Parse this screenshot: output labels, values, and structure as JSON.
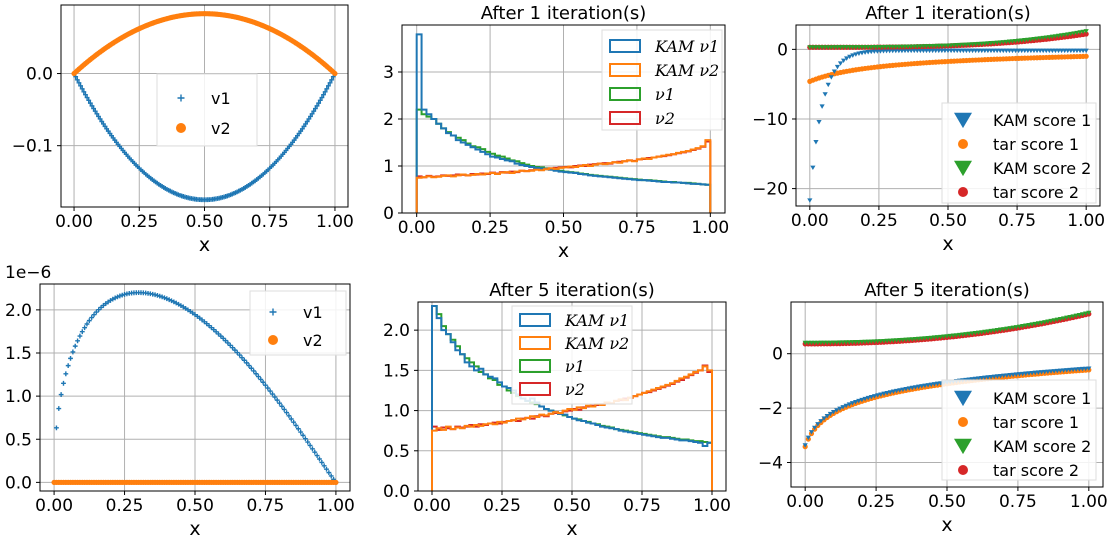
{
  "chart_data": [
    {
      "id": "p1",
      "type": "scatter",
      "title": "",
      "xlabel": "x",
      "ylabel": "",
      "xlim": [
        -0.05,
        1.05
      ],
      "ylim": [
        -0.185,
        0.095
      ],
      "xticks": [
        "0.00",
        "0.25",
        "0.50",
        "0.75",
        "1.00"
      ],
      "xtick_values": [
        0,
        0.25,
        0.5,
        0.75,
        1.0
      ],
      "yticks": [
        "−0.1",
        "0.0"
      ],
      "ytick_values": [
        -0.1,
        0.0
      ],
      "grid": true,
      "legend_position": "center",
      "series": [
        {
          "name": "v1",
          "marker": "plus",
          "color": "#1f77b4",
          "formula": "-0.175*4x(1-x)",
          "x_range": [
            0,
            1
          ],
          "n": 160
        },
        {
          "name": "v2",
          "marker": "dot",
          "color": "#ff7f0e",
          "formula": "0.083*4x(1-x)",
          "x_range": [
            0,
            1
          ],
          "n": 160
        }
      ]
    },
    {
      "id": "p2",
      "type": "histogram",
      "title": "After 1 iteration(s)",
      "xlabel": "x",
      "ylabel": "",
      "xlim": [
        -0.05,
        1.05
      ],
      "ylim": [
        0,
        4.0
      ],
      "xticks": [
        "0.00",
        "0.25",
        "0.50",
        "0.75",
        "1.00"
      ],
      "xtick_values": [
        0,
        0.25,
        0.5,
        0.75,
        1.0
      ],
      "yticks": [
        "0",
        "1",
        "2",
        "3"
      ],
      "ytick_values": [
        0,
        1,
        2,
        3
      ],
      "grid": true,
      "legend_position": "top-right",
      "bins": 60,
      "series": [
        {
          "name": "KAM ν1",
          "italic": true,
          "color": "#1f77b4",
          "values": [
            3.8,
            2.2,
            2.1,
            2.0,
            1.9,
            1.8,
            1.7,
            1.65,
            1.55,
            1.5,
            1.45,
            1.4,
            1.35,
            1.3,
            1.25,
            1.2,
            1.18,
            1.15,
            1.12,
            1.1,
            1.05,
            1.02,
            1.0,
            0.98,
            0.96,
            0.95,
            0.93,
            0.92,
            0.9,
            0.88,
            0.87,
            0.86,
            0.85,
            0.83,
            0.82,
            0.8,
            0.79,
            0.78,
            0.77,
            0.76,
            0.75,
            0.74,
            0.73,
            0.72,
            0.71,
            0.7,
            0.7,
            0.69,
            0.68,
            0.67,
            0.66,
            0.66,
            0.65,
            0.65,
            0.64,
            0.63,
            0.62,
            0.62,
            0.61,
            0.6
          ]
        },
        {
          "name": "KAM ν2",
          "italic": true,
          "color": "#ff7f0e",
          "values": [
            0.75,
            0.76,
            0.78,
            0.76,
            0.77,
            0.79,
            0.8,
            0.78,
            0.8,
            0.82,
            0.8,
            0.81,
            0.83,
            0.82,
            0.84,
            0.85,
            0.83,
            0.86,
            0.87,
            0.85,
            0.88,
            0.9,
            0.89,
            0.9,
            0.92,
            0.91,
            0.93,
            0.95,
            0.94,
            0.96,
            0.97,
            0.99,
            0.98,
            1.0,
            1.02,
            1.0,
            1.03,
            1.05,
            1.04,
            1.06,
            1.08,
            1.07,
            1.1,
            1.12,
            1.1,
            1.14,
            1.16,
            1.15,
            1.18,
            1.2,
            1.22,
            1.24,
            1.25,
            1.28,
            1.3,
            1.32,
            1.35,
            1.38,
            1.42,
            1.55
          ]
        },
        {
          "name": "ν1",
          "italic": true,
          "color": "#2ca02c",
          "values": [
            2.2,
            2.1,
            2.05,
            2.0,
            1.9,
            1.8,
            1.72,
            1.65,
            1.6,
            1.55,
            1.48,
            1.42,
            1.4,
            1.36,
            1.3,
            1.26,
            1.22,
            1.2,
            1.16,
            1.12,
            1.1,
            1.06,
            1.03,
            1.0,
            0.98,
            0.97,
            0.95,
            0.93,
            0.91,
            0.9,
            0.88,
            0.87,
            0.86,
            0.84,
            0.83,
            0.81,
            0.8,
            0.79,
            0.78,
            0.77,
            0.76,
            0.75,
            0.74,
            0.73,
            0.72,
            0.71,
            0.7,
            0.7,
            0.69,
            0.68,
            0.67,
            0.66,
            0.66,
            0.65,
            0.64,
            0.64,
            0.63,
            0.62,
            0.61,
            0.6
          ]
        },
        {
          "name": "ν2",
          "italic": true,
          "color": "#d62728",
          "values": [
            0.78,
            0.76,
            0.79,
            0.77,
            0.78,
            0.8,
            0.79,
            0.8,
            0.82,
            0.81,
            0.8,
            0.83,
            0.82,
            0.84,
            0.83,
            0.86,
            0.84,
            0.87,
            0.86,
            0.88,
            0.87,
            0.9,
            0.89,
            0.91,
            0.93,
            0.92,
            0.94,
            0.95,
            0.96,
            0.97,
            0.98,
            0.97,
            1.0,
            1.01,
            1.0,
            1.03,
            1.04,
            1.05,
            1.06,
            1.05,
            1.08,
            1.09,
            1.1,
            1.12,
            1.11,
            1.14,
            1.15,
            1.17,
            1.18,
            1.2,
            1.21,
            1.23,
            1.25,
            1.27,
            1.29,
            1.31,
            1.34,
            1.37,
            1.41,
            1.52
          ]
        }
      ]
    },
    {
      "id": "p3",
      "type": "scatter",
      "title": "After 1 iteration(s)",
      "xlabel": "x",
      "ylabel": "",
      "xlim": [
        -0.05,
        1.05
      ],
      "ylim": [
        -22.5,
        3.5
      ],
      "xticks": [
        "0.00",
        "0.25",
        "0.50",
        "0.75",
        "1.00"
      ],
      "xtick_values": [
        0,
        0.25,
        0.5,
        0.75,
        1.0
      ],
      "yticks": [
        "−20",
        "−10",
        "0"
      ],
      "ytick_values": [
        -20,
        -10,
        0
      ],
      "grid": true,
      "legend_position": "lower-right",
      "series": [
        {
          "name": "KAM score 1",
          "marker": "triangle",
          "color": "#1f77b4"
        },
        {
          "name": "tar score 1",
          "marker": "dot",
          "color": "#ff7f0e"
        },
        {
          "name": "KAM score 2",
          "marker": "triangle",
          "color": "#2ca02c"
        },
        {
          "name": "tar score 2",
          "marker": "dot",
          "color": "#d62728"
        }
      ]
    },
    {
      "id": "p4",
      "type": "scatter",
      "title": "",
      "xlabel": "x",
      "ylabel": "",
      "y_multiplier": "1e−6",
      "xlim": [
        -0.05,
        1.05
      ],
      "ylim": [
        -0.1,
        2.3
      ],
      "xticks": [
        "0.00",
        "0.25",
        "0.50",
        "0.75",
        "1.00"
      ],
      "xtick_values": [
        0,
        0.25,
        0.5,
        0.75,
        1.0
      ],
      "yticks": [
        "0.0",
        "0.5",
        "1.0",
        "1.5",
        "2.0"
      ],
      "ytick_values": [
        0,
        0.5,
        1.0,
        1.5,
        2.0
      ],
      "grid": true,
      "legend_position": "top-right",
      "series": [
        {
          "name": "v1",
          "marker": "plus",
          "color": "#1f77b4",
          "peak": 2.2,
          "peak_x": 0.3
        },
        {
          "name": "v2",
          "marker": "dot",
          "color": "#ff7f0e",
          "value": 0.0
        }
      ]
    },
    {
      "id": "p5",
      "type": "histogram",
      "title": "After 5 iteration(s)",
      "xlabel": "x",
      "ylabel": "",
      "xlim": [
        -0.05,
        1.05
      ],
      "ylim": [
        0,
        2.35
      ],
      "xticks": [
        "0.00",
        "0.25",
        "0.50",
        "0.75",
        "1.00"
      ],
      "xtick_values": [
        0,
        0.25,
        0.5,
        0.75,
        1.0
      ],
      "yticks": [
        "0.0",
        "0.5",
        "1.0",
        "1.5",
        "2.0"
      ],
      "ytick_values": [
        0,
        0.5,
        1.0,
        1.5,
        2.0
      ],
      "grid": true,
      "legend_position": "top-center",
      "bins": 60,
      "series": [
        {
          "name": "KAM ν1",
          "italic": true,
          "color": "#1f77b4",
          "values": [
            2.3,
            2.15,
            2.0,
            1.95,
            1.85,
            1.75,
            1.7,
            1.6,
            1.55,
            1.5,
            1.52,
            1.45,
            1.42,
            1.4,
            1.35,
            1.3,
            1.28,
            1.25,
            1.2,
            1.15,
            1.12,
            1.15,
            1.1,
            1.05,
            1.02,
            1.0,
            0.98,
            0.96,
            0.95,
            0.92,
            0.9,
            0.88,
            0.87,
            0.85,
            0.84,
            0.82,
            0.8,
            0.79,
            0.78,
            0.77,
            0.75,
            0.74,
            0.73,
            0.72,
            0.71,
            0.7,
            0.69,
            0.68,
            0.67,
            0.66,
            0.66,
            0.65,
            0.64,
            0.63,
            0.63,
            0.62,
            0.61,
            0.6,
            0.56,
            0.6
          ]
        },
        {
          "name": "KAM ν2",
          "italic": true,
          "color": "#ff7f0e",
          "values": [
            0.75,
            0.78,
            0.76,
            0.8,
            0.77,
            0.79,
            0.78,
            0.81,
            0.8,
            0.82,
            0.81,
            0.83,
            0.84,
            0.83,
            0.86,
            0.85,
            0.87,
            0.88,
            0.9,
            0.89,
            0.91,
            0.93,
            0.92,
            0.95,
            0.94,
            0.96,
            0.98,
            0.97,
            1.0,
            1.02,
            1.01,
            1.04,
            1.03,
            1.06,
            1.05,
            1.08,
            1.07,
            1.1,
            1.09,
            1.12,
            1.14,
            1.13,
            1.16,
            1.18,
            1.2,
            1.22,
            1.24,
            1.26,
            1.28,
            1.3,
            1.32,
            1.34,
            1.37,
            1.4,
            1.42,
            1.45,
            1.48,
            1.5,
            1.55,
            1.5
          ]
        },
        {
          "name": "ν1",
          "italic": true,
          "color": "#2ca02c",
          "values": [
            2.3,
            2.2,
            2.05,
            1.95,
            1.88,
            1.8,
            1.7,
            1.65,
            1.6,
            1.55,
            1.48,
            1.45,
            1.4,
            1.38,
            1.32,
            1.3,
            1.25,
            1.22,
            1.18,
            1.15,
            1.12,
            1.1,
            1.08,
            1.05,
            1.02,
            1.0,
            0.98,
            0.96,
            0.94,
            0.92,
            0.9,
            0.89,
            0.87,
            0.86,
            0.84,
            0.83,
            0.81,
            0.8,
            0.79,
            0.77,
            0.76,
            0.75,
            0.74,
            0.73,
            0.72,
            0.71,
            0.7,
            0.69,
            0.68,
            0.67,
            0.67,
            0.66,
            0.65,
            0.64,
            0.64,
            0.63,
            0.62,
            0.62,
            0.61,
            0.6
          ]
        },
        {
          "name": "ν2",
          "italic": true,
          "color": "#d62728",
          "values": [
            0.8,
            0.76,
            0.79,
            0.78,
            0.77,
            0.8,
            0.79,
            0.8,
            0.82,
            0.8,
            0.83,
            0.82,
            0.84,
            0.85,
            0.84,
            0.86,
            0.87,
            0.88,
            0.87,
            0.9,
            0.91,
            0.9,
            0.93,
            0.94,
            0.93,
            0.96,
            0.97,
            0.96,
            0.99,
            1.0,
            1.02,
            1.01,
            1.04,
            1.05,
            1.06,
            1.07,
            1.08,
            1.1,
            1.09,
            1.12,
            1.13,
            1.15,
            1.16,
            1.18,
            1.2,
            1.22,
            1.23,
            1.25,
            1.27,
            1.29,
            1.31,
            1.33,
            1.36,
            1.38,
            1.41,
            1.44,
            1.47,
            1.5,
            1.56,
            1.48
          ]
        }
      ]
    },
    {
      "id": "p6",
      "type": "scatter",
      "title": "After 5 iteration(s)",
      "xlabel": "x",
      "ylabel": "",
      "xlim": [
        -0.05,
        1.05
      ],
      "ylim": [
        -4.9,
        1.9
      ],
      "xticks": [
        "0.00",
        "0.25",
        "0.50",
        "0.75",
        "1.00"
      ],
      "xtick_values": [
        0,
        0.25,
        0.5,
        0.75,
        1.0
      ],
      "yticks": [
        "−4",
        "−2",
        "0"
      ],
      "ytick_values": [
        -4,
        -2,
        0
      ],
      "grid": true,
      "legend_position": "lower-right",
      "series": [
        {
          "name": "KAM score 1",
          "marker": "triangle",
          "color": "#1f77b4"
        },
        {
          "name": "tar score 1",
          "marker": "dot",
          "color": "#ff7f0e"
        },
        {
          "name": "KAM score 2",
          "marker": "triangle",
          "color": "#2ca02c"
        },
        {
          "name": "tar score 2",
          "marker": "dot",
          "color": "#d62728"
        }
      ]
    }
  ]
}
